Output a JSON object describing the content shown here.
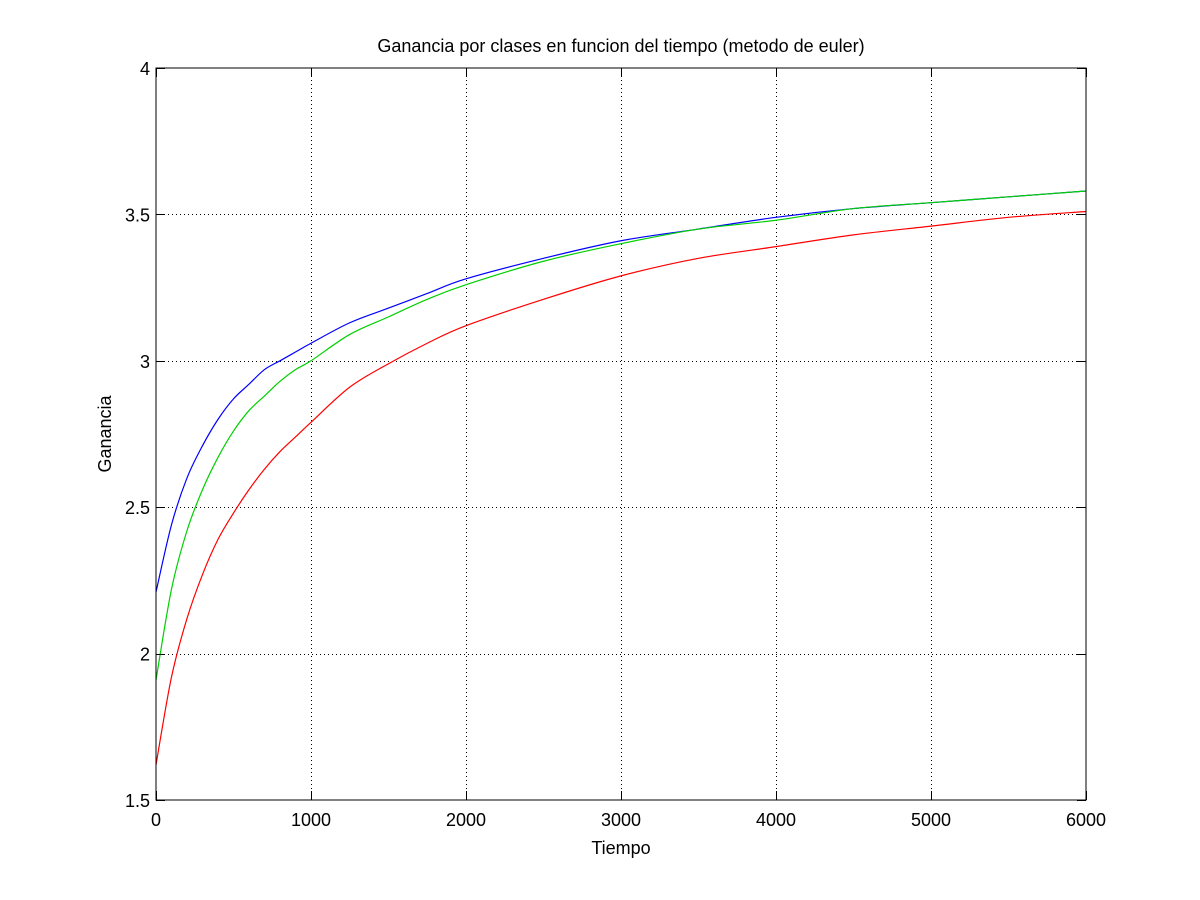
{
  "chart_data": {
    "type": "line",
    "title": "Ganancia por clases en funcion del tiempo (metodo de euler)",
    "xlabel": "Tiempo",
    "ylabel": "Ganancia",
    "xlim": [
      0,
      6000
    ],
    "ylim": [
      1.5,
      4
    ],
    "xticks": [
      0,
      1000,
      2000,
      3000,
      4000,
      5000,
      6000
    ],
    "xtick_labels": [
      "0",
      "1000",
      "2000",
      "3000",
      "4000",
      "5000",
      "6000"
    ],
    "yticks": [
      1.5,
      2,
      2.5,
      3,
      3.5,
      4
    ],
    "ytick_labels": [
      "1.5",
      "2",
      "2.5",
      "3",
      "3.5",
      "4"
    ],
    "grid": true,
    "legend": "none",
    "x": [
      0,
      100,
      200,
      300,
      400,
      500,
      600,
      700,
      800,
      900,
      1000,
      1250,
      1500,
      1750,
      2000,
      2500,
      3000,
      3500,
      4000,
      4500,
      5000,
      5500,
      6000
    ],
    "series": [
      {
        "color": "#0000ff",
        "values": [
          2.21,
          2.44,
          2.6,
          2.71,
          2.8,
          2.87,
          2.92,
          2.97,
          3.0,
          3.03,
          3.06,
          3.13,
          3.18,
          3.23,
          3.28,
          3.35,
          3.41,
          3.45,
          3.49,
          3.52,
          3.54,
          3.56,
          3.58
        ]
      },
      {
        "color": "#00d000",
        "values": [
          1.91,
          2.22,
          2.42,
          2.56,
          2.67,
          2.76,
          2.83,
          2.88,
          2.93,
          2.97,
          3.0,
          3.09,
          3.15,
          3.21,
          3.26,
          3.34,
          3.4,
          3.45,
          3.48,
          3.52,
          3.54,
          3.56,
          3.58
        ]
      },
      {
        "color": "#ff0000",
        "values": [
          1.62,
          1.92,
          2.12,
          2.27,
          2.39,
          2.48,
          2.56,
          2.63,
          2.69,
          2.74,
          2.79,
          2.91,
          2.99,
          3.06,
          3.12,
          3.21,
          3.29,
          3.35,
          3.39,
          3.43,
          3.46,
          3.49,
          3.51
        ]
      }
    ]
  }
}
